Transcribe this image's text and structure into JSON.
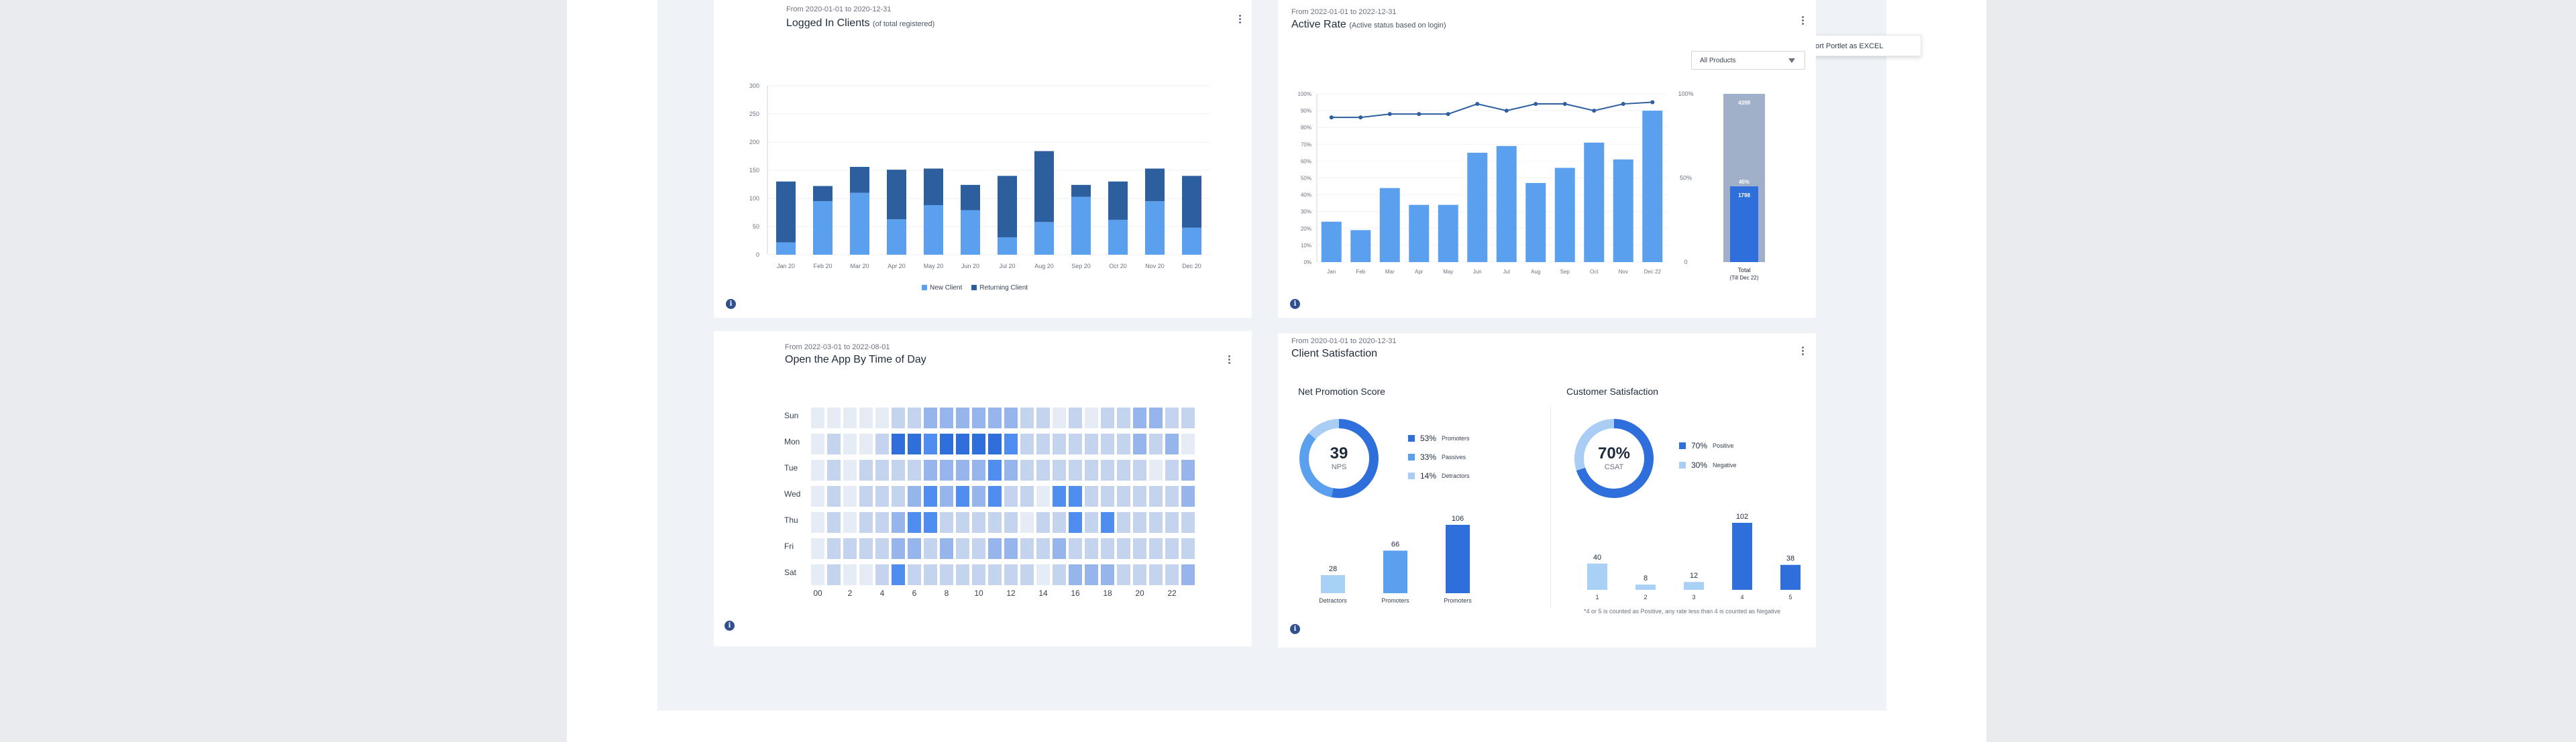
{
  "colors": {
    "dark": "#2d5e9e",
    "light": "#5aa0ef",
    "heat_base": "#e6ecf6",
    "heat_max": "#2f6fdc",
    "grey_bar": "#9fb0c8"
  },
  "menu": {
    "export_label": "Export Portlet as EXCEL"
  },
  "logged_in": {
    "range": "From 2020-01-01 to 2020-12-31",
    "title": "Logged In Clients",
    "subtitle": "(of total registered)",
    "legend": {
      "new": "New Client",
      "returning": "Returning Client"
    },
    "chart_data": {
      "type": "bar",
      "stacked": true,
      "categories": [
        "Jan 20",
        "Feb 20",
        "Mar 20",
        "Apr 20",
        "May 20",
        "Jun 20",
        "Jul 20",
        "Aug 20",
        "Sep 20",
        "Oct 20",
        "Nov 20",
        "Dec 20"
      ],
      "series": [
        {
          "name": "New Client",
          "values": [
            22,
            95,
            110,
            63,
            88,
            79,
            31,
            58,
            103,
            62,
            95,
            48
          ]
        },
        {
          "name": "Returning Client",
          "values": [
            108,
            27,
            46,
            88,
            65,
            45,
            109,
            126,
            21,
            68,
            58,
            92
          ]
        }
      ],
      "yticks": [
        "0",
        "50",
        "100",
        "150",
        "200",
        "250",
        "300"
      ],
      "ylim": [
        0,
        300
      ]
    }
  },
  "active_rate": {
    "range": "From 2022-01-01 to 2022-12-31",
    "title": "Active Rate",
    "subtitle": "(Active status based on login)",
    "dropdown_value": "All Products",
    "total_label": "Total",
    "total_sublabel": "(Till Dec 22)",
    "chart_data": {
      "type": "bar",
      "categories": [
        "Jan",
        "Feb",
        "Mar",
        "Apr",
        "May",
        "Jun",
        "Jul",
        "Aug",
        "Sep",
        "Oct",
        "Nov",
        "Dec 22"
      ],
      "values": [
        24,
        19,
        44,
        34,
        34,
        65,
        69,
        47,
        56,
        71,
        61,
        90
      ],
      "line_values": [
        86,
        86,
        88,
        88,
        88,
        94,
        90,
        94,
        94,
        90,
        94,
        95
      ],
      "yticks": [
        "0%",
        "10%",
        "20%",
        "30%",
        "40%",
        "50%",
        "60%",
        "70%",
        "80%",
        "90%",
        "100%"
      ],
      "right_ticks": [
        "0",
        "50%",
        "100%"
      ],
      "total": {
        "registered": "4398",
        "active_pct": "45%",
        "active": "1798",
        "active_fraction": 0.45
      }
    }
  },
  "open_app": {
    "range": "From 2022-03-01 to 2022-08-01",
    "title": "Open the App By Time of Day",
    "days": [
      "Sun",
      "Mon",
      "Tue",
      "Wed",
      "Thu",
      "Fri",
      "Sat"
    ],
    "hour_labels": [
      "00",
      "2",
      "4",
      "6",
      "8",
      "10",
      "12",
      "14",
      "16",
      "18",
      "20",
      "22"
    ],
    "chart_data": {
      "type": "heatmap",
      "rows": [
        "Sun",
        "Mon",
        "Tue",
        "Wed",
        "Thu",
        "Fri",
        "Sat"
      ],
      "columns": [
        "00",
        "1",
        "2",
        "3",
        "4",
        "5",
        "6",
        "7",
        "8",
        "9",
        "10",
        "11",
        "12",
        "13",
        "14",
        "15",
        "16",
        "17",
        "18",
        "19",
        "20",
        "21",
        "22",
        "23"
      ],
      "values": [
        [
          0,
          0,
          0,
          0,
          0,
          1,
          1,
          2,
          2,
          2,
          2,
          2,
          2,
          1,
          1,
          0,
          1,
          0,
          1,
          1,
          2,
          2,
          1,
          1
        ],
        [
          0,
          1,
          0,
          0,
          1,
          4,
          4,
          3,
          4,
          4,
          4,
          4,
          3,
          1,
          1,
          1,
          1,
          1,
          1,
          1,
          2,
          1,
          2,
          0
        ],
        [
          0,
          1,
          0,
          1,
          1,
          1,
          1,
          2,
          2,
          2,
          2,
          3,
          2,
          1,
          1,
          1,
          1,
          1,
          1,
          1,
          1,
          0,
          1,
          2
        ],
        [
          0,
          1,
          0,
          1,
          1,
          1,
          2,
          3,
          2,
          3,
          2,
          3,
          1,
          1,
          0,
          3,
          3,
          1,
          1,
          1,
          1,
          1,
          1,
          2
        ],
        [
          0,
          1,
          0,
          1,
          1,
          2,
          3,
          3,
          1,
          1,
          1,
          1,
          1,
          0,
          1,
          1,
          3,
          1,
          3,
          1,
          1,
          1,
          1,
          1
        ],
        [
          0,
          1,
          1,
          1,
          1,
          2,
          2,
          1,
          2,
          1,
          1,
          2,
          2,
          1,
          1,
          2,
          1,
          1,
          1,
          1,
          1,
          1,
          1,
          1
        ],
        [
          0,
          1,
          0,
          0,
          1,
          3,
          1,
          1,
          1,
          1,
          1,
          1,
          1,
          1,
          0,
          1,
          2,
          2,
          2,
          1,
          1,
          1,
          1,
          2
        ]
      ]
    }
  },
  "satisfaction": {
    "range": "From 2020-01-01 to 2020-12-31",
    "title": "Client Satisfaction",
    "nps": {
      "section_title": "Net Promotion Score",
      "score": "39",
      "score_label": "NPS",
      "rows": [
        {
          "pct": "53%",
          "label": "Promoters",
          "color": "#2f6fdc"
        },
        {
          "pct": "33%",
          "label": "Passives",
          "color": "#5aa0ef"
        },
        {
          "pct": "14%",
          "label": "Detractors",
          "color": "#a9cdf5"
        }
      ],
      "chart_data": {
        "type": "bar",
        "categories": [
          "Detractors",
          "Promoters",
          "Promoters"
        ],
        "values": [
          28,
          66,
          106
        ],
        "colors": [
          "#a9d0f5",
          "#5aa0ef",
          "#2f6fdc"
        ]
      }
    },
    "csat": {
      "section_title": "Customer Satisfaction",
      "score": "70%",
      "score_label": "CSAT",
      "rows": [
        {
          "pct": "70%",
          "label": "Positive",
          "color": "#2f6fdc"
        },
        {
          "pct": "30%",
          "label": "Negative",
          "color": "#a9cdf5"
        }
      ],
      "note": "*4 or 5 is counted as Positive, any rate less than 4 is counted as Negative",
      "chart_data": {
        "type": "bar",
        "categories": [
          "1",
          "2",
          "3",
          "4",
          "5"
        ],
        "values": [
          40,
          8,
          12,
          102,
          38
        ],
        "colors": [
          "#a9d0f5",
          "#a9d0f5",
          "#a9d0f5",
          "#2f6fdc",
          "#2f6fdc"
        ]
      }
    }
  }
}
